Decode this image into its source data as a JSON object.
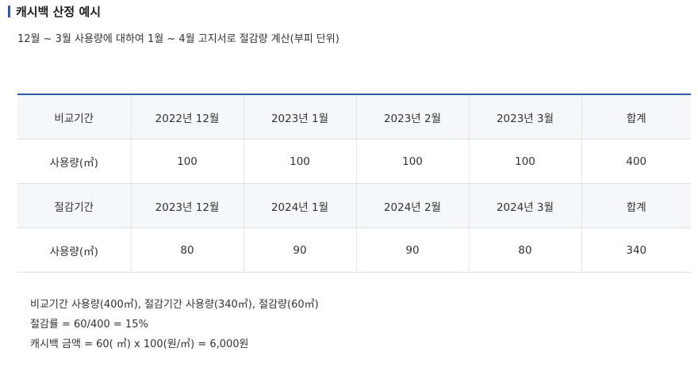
{
  "section": {
    "title": "캐시백 산정 예시",
    "description": "12월 ~ 3월 사용량에 대하여 1월 ~ 4월 고지서로 절감량 계산(부피 단위)"
  },
  "table": {
    "rows": [
      [
        "비교기간",
        "2022년 12월",
        "2023년 1월",
        "2023년 2월",
        "2023년 3월",
        "합계"
      ],
      [
        "사용량(㎥)",
        "100",
        "100",
        "100",
        "100",
        "400"
      ],
      [
        "절감기간",
        "2023년 12월",
        "2024년 1월",
        "2024년 2월",
        "2024년 3월",
        "합계"
      ],
      [
        "사용량(㎥)",
        "80",
        "90",
        "90",
        "80",
        "340"
      ]
    ]
  },
  "notes": [
    "비교기간 사용량(400㎥), 절감기간 사용량(340㎥), 절감량(60㎥)",
    "절감률 = 60/400 = 15%",
    "캐시백 금액 = 60( ㎥) x 100(원/㎥) = 6,000원"
  ]
}
